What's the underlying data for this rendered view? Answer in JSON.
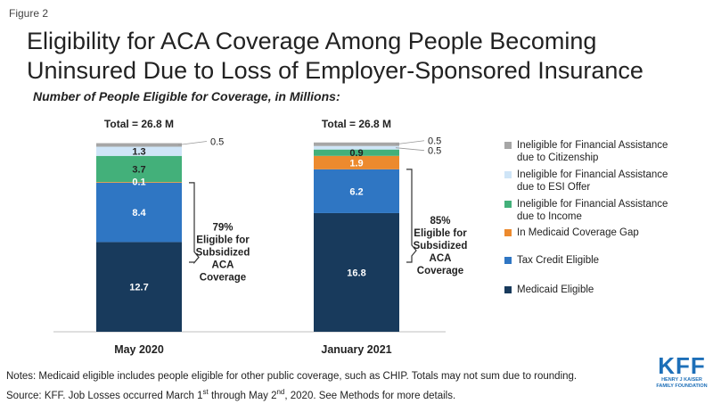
{
  "figure_label": "Figure 2",
  "title_line1": "Eligibility for ACA Coverage Among People Becoming",
  "title_line2": "Uninsured Due to Loss of Employer-Sponsored Insurance",
  "subtitle": "Number of People Eligible for Coverage, in Millions:",
  "chart_data": {
    "type": "bar",
    "stacked": true,
    "categories": [
      "May 2020",
      "January 2021"
    ],
    "totals": [
      "Total = 26.8 M",
      "Total = 26.8 M"
    ],
    "series": [
      {
        "name": "Medicaid Eligible",
        "color": "#183a5c",
        "values": [
          12.7,
          16.8
        ],
        "labels": [
          "12.7",
          "16.8"
        ]
      },
      {
        "name": "Tax Credit Eligible",
        "color": "#2f76c3",
        "values": [
          8.4,
          6.2
        ],
        "labels": [
          "8.4",
          "6.2"
        ]
      },
      {
        "name": "In Medicaid Coverage Gap",
        "color": "#ec8a2e",
        "values": [
          0.1,
          1.9
        ],
        "labels": [
          "0.1",
          "1.9"
        ]
      },
      {
        "name": "Ineligible for Financial Assistance due to Income",
        "color": "#43b07a",
        "values": [
          3.7,
          0.9
        ],
        "labels": [
          "3.7",
          "0.9"
        ]
      },
      {
        "name": "Ineligible for Financial Assistance due to ESI Offer",
        "color": "#cfe5f7",
        "values": [
          1.3,
          0.5
        ],
        "labels": [
          "1.3",
          "0.5"
        ]
      },
      {
        "name": "Ineligible for Financial Assistance due to Citizenship",
        "color": "#a6a6a6",
        "values": [
          0.5,
          0.5
        ],
        "labels": [
          "0.5",
          "0.5"
        ]
      }
    ],
    "brackets": [
      {
        "lines": [
          "79%",
          "Eligible for",
          "Subsidized",
          "ACA",
          "Coverage"
        ]
      },
      {
        "lines": [
          "85%",
          "Eligible for",
          "Subsidized",
          "ACA",
          "Coverage"
        ]
      }
    ]
  },
  "legend": [
    {
      "line1": "Ineligible for Financial Assistance",
      "line2": "due to Citizenship",
      "color": "#a6a6a6"
    },
    {
      "line1": "Ineligible for Financial Assistance",
      "line2": "due to ESI Offer",
      "color": "#cfe5f7"
    },
    {
      "line1": "Ineligible for Financial Assistance",
      "line2": "due to Income",
      "color": "#43b07a"
    },
    {
      "line1": "In Medicaid Coverage Gap",
      "line2": "",
      "color": "#ec8a2e"
    },
    {
      "line1": "Tax Credit Eligible",
      "line2": "",
      "color": "#2f76c3"
    },
    {
      "line1": "Medicaid Eligible",
      "line2": "",
      "color": "#183a5c"
    }
  ],
  "notes": {
    "line1": "Notes: Medicaid eligible includes people eligible for other public coverage, such as CHIP. Totals may not sum due to rounding.",
    "line2_a": "Source: KFF. Job Losses occurred March 1",
    "line2_sup1": "st",
    "line2_b": " through May 2",
    "line2_sup2": "nd",
    "line2_c": ", 2020. See Methods for more details."
  },
  "logo": {
    "main": "KFF",
    "sub1": "HENRY J KAISER",
    "sub2": "FAMILY FOUNDATION"
  }
}
